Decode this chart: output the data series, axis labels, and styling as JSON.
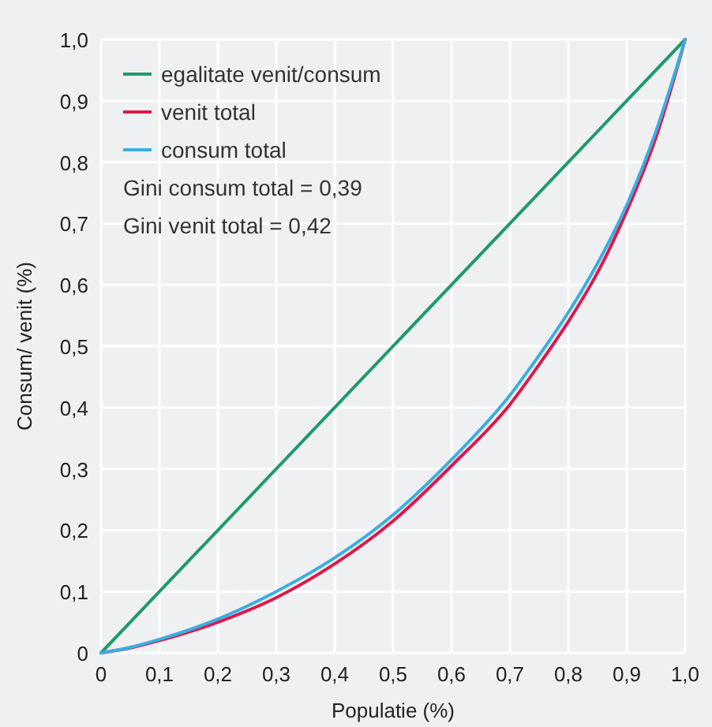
{
  "chart_data": {
    "type": "line",
    "xlabel": "Populatie (%)",
    "ylabel": "Consum/ venit (%)",
    "xlim": [
      0,
      1
    ],
    "ylim": [
      0,
      1
    ],
    "xticks": [
      0,
      {
        "value": 0.1,
        "label": "0,1"
      },
      {
        "value": 0.2,
        "label": "0,2"
      },
      {
        "value": 0.3,
        "label": "0,3"
      },
      {
        "value": 0.4,
        "label": "0,4"
      },
      {
        "value": 0.5,
        "label": "0,5"
      },
      {
        "value": 0.6,
        "label": "0,6"
      },
      {
        "value": 0.7,
        "label": "0,7"
      },
      {
        "value": 0.8,
        "label": "0,8"
      },
      {
        "value": 0.9,
        "label": "0,9"
      },
      {
        "value": 1,
        "label": "1,0"
      }
    ],
    "yticks": [
      0,
      {
        "value": 0.1,
        "label": "0,1"
      },
      {
        "value": 0.2,
        "label": "0,2"
      },
      {
        "value": 0.3,
        "label": "0,3"
      },
      {
        "value": 0.4,
        "label": "0,4"
      },
      {
        "value": 0.5,
        "label": "0,5"
      },
      {
        "value": 0.6,
        "label": "0,6"
      },
      {
        "value": 0.7,
        "label": "0,7"
      },
      {
        "value": 0.8,
        "label": "0,8"
      },
      {
        "value": 0.9,
        "label": "0,9"
      },
      {
        "value": 1,
        "label": "1,0"
      }
    ],
    "grid": true,
    "legend": "top left",
    "marker": "none",
    "line_style": "solid",
    "annotations": [
      "Gini consum total = 0,39",
      "Gini venit total = 0,42"
    ],
    "series": [
      {
        "name": "egalitate venit/consum",
        "color": "#1f9a6a",
        "x": [
          0,
          1
        ],
        "values": [
          0,
          1
        ]
      },
      {
        "name": "venit total",
        "color": "#e0174a",
        "x": [
          0,
          0.05,
          0.1,
          0.2,
          0.3,
          0.4,
          0.5,
          0.6,
          0.7,
          0.75,
          0.8,
          0.85,
          0.9,
          0.95,
          1
        ],
        "values": [
          0,
          0.008,
          0.02,
          0.05,
          0.09,
          0.145,
          0.215,
          0.305,
          0.405,
          0.47,
          0.54,
          0.62,
          0.72,
          0.84,
          1
        ]
      },
      {
        "name": "consum total",
        "color": "#3aaee0",
        "x": [
          0,
          0.05,
          0.1,
          0.2,
          0.3,
          0.4,
          0.5,
          0.6,
          0.7,
          0.75,
          0.8,
          0.85,
          0.9,
          0.95,
          1
        ],
        "values": [
          0,
          0.009,
          0.022,
          0.055,
          0.1,
          0.155,
          0.225,
          0.315,
          0.42,
          0.485,
          0.555,
          0.635,
          0.73,
          0.85,
          1
        ]
      }
    ]
  }
}
